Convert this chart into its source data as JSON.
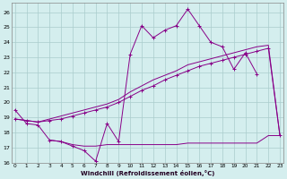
{
  "xlabel": "Windchill (Refroidissement éolien,°C)",
  "background_color": "#d4eeee",
  "grid_color": "#aacccc",
  "line_color": "#880088",
  "x_values": [
    0,
    1,
    2,
    3,
    4,
    5,
    6,
    7,
    8,
    9,
    10,
    11,
    12,
    13,
    14,
    15,
    16,
    17,
    18,
    19,
    20,
    21,
    22,
    23
  ],
  "series1": [
    19.5,
    18.6,
    18.5,
    17.5,
    17.4,
    17.1,
    16.8,
    16.1,
    18.6,
    17.4,
    23.2,
    25.1,
    24.3,
    24.8,
    25.1,
    26.2,
    25.1,
    24.0,
    23.7,
    22.2,
    23.3,
    21.9,
    null,
    null
  ],
  "series2": [
    18.9,
    18.8,
    18.7,
    18.8,
    18.9,
    19.1,
    19.3,
    19.5,
    19.7,
    20.0,
    20.4,
    20.8,
    21.1,
    21.5,
    21.8,
    22.1,
    22.4,
    22.6,
    22.8,
    23.0,
    23.2,
    23.4,
    23.6,
    17.8
  ],
  "series3": [
    18.9,
    18.8,
    18.7,
    18.9,
    19.1,
    19.3,
    19.5,
    19.7,
    19.9,
    20.2,
    20.7,
    21.1,
    21.5,
    21.8,
    22.1,
    22.5,
    22.7,
    22.9,
    23.1,
    23.3,
    23.5,
    23.7,
    23.8,
    17.8
  ],
  "series4": [
    null,
    null,
    null,
    17.5,
    17.4,
    17.2,
    17.1,
    17.1,
    17.2,
    17.2,
    17.2,
    17.2,
    17.2,
    17.2,
    17.2,
    17.3,
    17.3,
    17.3,
    17.3,
    17.3,
    17.3,
    17.3,
    17.8,
    17.8
  ],
  "ylim": [
    16.0,
    26.6
  ],
  "xlim": [
    -0.3,
    23.3
  ],
  "yticks": [
    16,
    17,
    18,
    19,
    20,
    21,
    22,
    23,
    24,
    25,
    26
  ],
  "xticks": [
    0,
    1,
    2,
    3,
    4,
    5,
    6,
    7,
    8,
    9,
    10,
    11,
    12,
    13,
    14,
    15,
    16,
    17,
    18,
    19,
    20,
    21,
    22,
    23
  ]
}
